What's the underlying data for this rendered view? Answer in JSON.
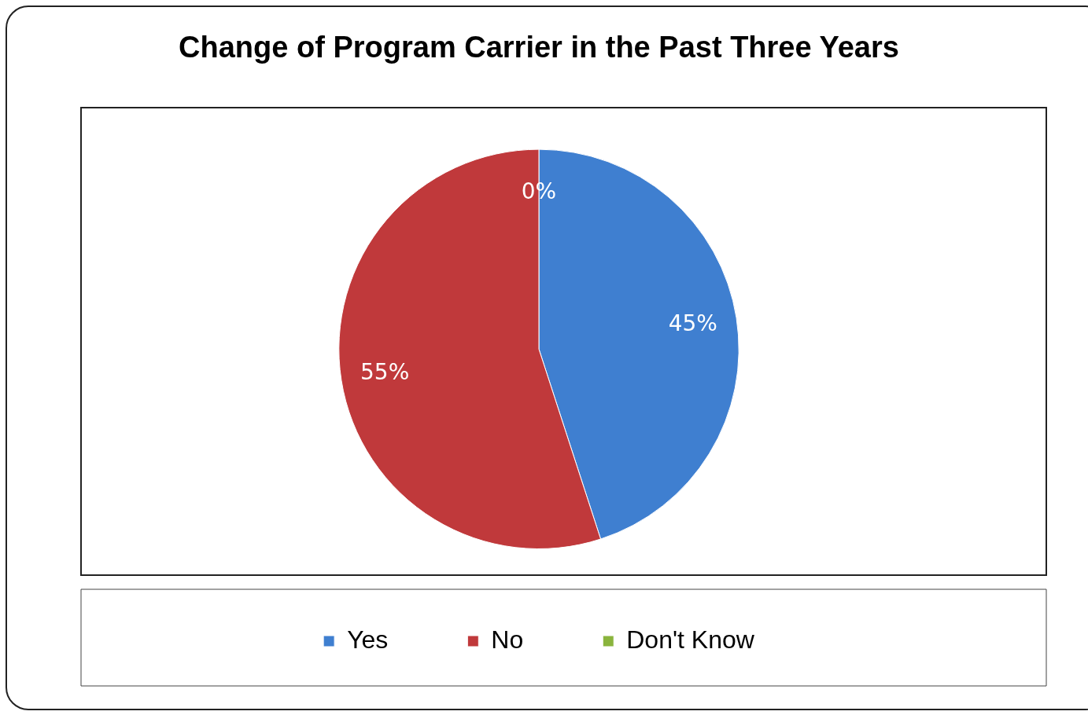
{
  "chart_data": {
    "type": "pie",
    "title": "Change of Program Carrier in the Past Three Years",
    "categories": [
      "Yes",
      "No",
      "Don't Know"
    ],
    "values": [
      45,
      55,
      0
    ],
    "colors": [
      "#3f7fd0",
      "#c0393b",
      "#8ab43d"
    ],
    "value_labels": [
      "45%",
      "55%",
      "0%"
    ],
    "legend": "bottom"
  }
}
